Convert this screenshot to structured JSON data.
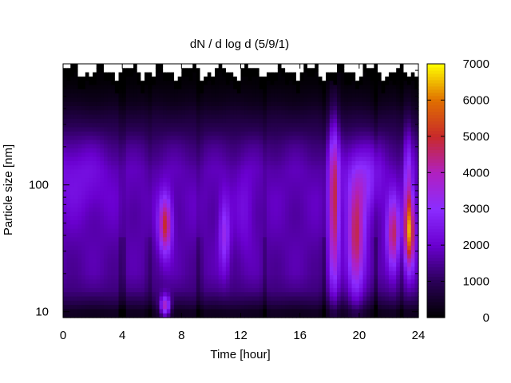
{
  "chart_data": {
    "type": "heatmap",
    "title": "dN / d log d (5/9/1)",
    "xlabel": "Time [hour]",
    "ylabel": "Particle size [nm]",
    "x_range": [
      0,
      24
    ],
    "x_ticks": [
      0,
      4,
      8,
      12,
      16,
      20,
      24
    ],
    "y_scale": "log",
    "y_range": [
      9,
      900
    ],
    "y_ticks": [
      10,
      100
    ],
    "colorbar": {
      "range": [
        0,
        7000
      ],
      "ticks": [
        0,
        1000,
        2000,
        3000,
        4000,
        5000,
        6000,
        7000
      ],
      "colormap": [
        "#000000",
        "#2a0057",
        "#6a00d0",
        "#8b2cff",
        "#b020c0",
        "#c82a2a",
        "#e07000",
        "#ffff00"
      ]
    },
    "base_profile": [
      {
        "d": 10,
        "v": 400
      },
      {
        "d": 12,
        "v": 1000
      },
      {
        "d": 15,
        "v": 1500
      },
      {
        "d": 20,
        "v": 1750
      },
      {
        "d": 40,
        "v": 1850
      },
      {
        "d": 80,
        "v": 1950
      },
      {
        "d": 130,
        "v": 1900
      },
      {
        "d": 200,
        "v": 1500
      },
      {
        "d": 300,
        "v": 900
      },
      {
        "d": 450,
        "v": 350
      },
      {
        "d": 650,
        "v": 80
      }
    ],
    "events": [
      {
        "t": 0.8,
        "dt": 1.6,
        "d": 120,
        "dd": 0.22,
        "amp": 600
      },
      {
        "t": 6.9,
        "dt": 0.3,
        "d": 48,
        "dd": 0.16,
        "amp": 3300
      },
      {
        "t": 6.9,
        "dt": 0.25,
        "d": 11,
        "dd": 0.06,
        "amp": 3200
      },
      {
        "t": 10.9,
        "dt": 0.25,
        "d": 40,
        "dd": 0.2,
        "amp": 1600
      },
      {
        "t": 12.3,
        "dt": 0.4,
        "d": 60,
        "dd": 0.25,
        "amp": 500
      },
      {
        "t": 18.3,
        "dt": 0.25,
        "d": 70,
        "dd": 0.45,
        "amp": 3200
      },
      {
        "t": 19.8,
        "dt": 0.4,
        "d": 35,
        "dd": 0.3,
        "amp": 3000
      },
      {
        "t": 20.3,
        "dt": 0.8,
        "d": 110,
        "dd": 0.2,
        "amp": 1300
      },
      {
        "t": 22.3,
        "dt": 0.3,
        "d": 40,
        "dd": 0.2,
        "amp": 2900
      },
      {
        "t": 23.4,
        "dt": 0.25,
        "d": 42,
        "dd": 0.2,
        "amp": 4200
      },
      {
        "t": 23.3,
        "dt": 0.2,
        "d": 110,
        "dd": 0.3,
        "amp": 1500
      }
    ],
    "dark_streaks": [
      {
        "t": 4.0,
        "amp": 700
      },
      {
        "t": 5.8,
        "amp": 400
      },
      {
        "t": 9.2,
        "amp": 500
      },
      {
        "t": 13.6,
        "amp": 400
      },
      {
        "t": 17.6,
        "amp": 500
      },
      {
        "t": 21.1,
        "amp": 600
      },
      {
        "t": 22.8,
        "amp": 400
      }
    ]
  }
}
